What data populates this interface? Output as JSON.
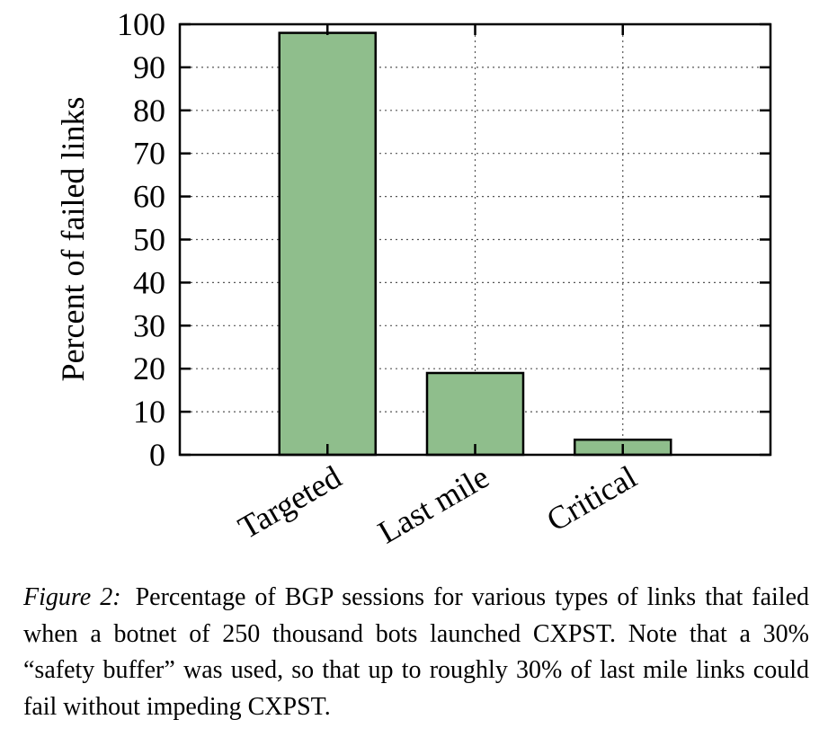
{
  "chart_data": {
    "type": "bar",
    "categories": [
      "Targeted",
      "Last mile",
      "Critical"
    ],
    "values": [
      98,
      19,
      3.5
    ],
    "ylabel": "Percent of failed links",
    "xlabel": "",
    "ylim": [
      0,
      100
    ],
    "yticks": [
      "0",
      "10",
      "20",
      "30",
      "40",
      "50",
      "60",
      "70",
      "80",
      "90",
      "100"
    ],
    "grid": true,
    "bar_color": "#8fbe8c",
    "bar_edge_color": "#000000"
  },
  "caption": {
    "label": "Figure 2:",
    "text": "Percentage of BGP sessions for various types of links that failed when a botnet of 250 thousand bots launched CXPST. Note that a 30% “safety buffer” was used, so that up to roughly 30% of last mile links could fail without impeding CXPST."
  }
}
